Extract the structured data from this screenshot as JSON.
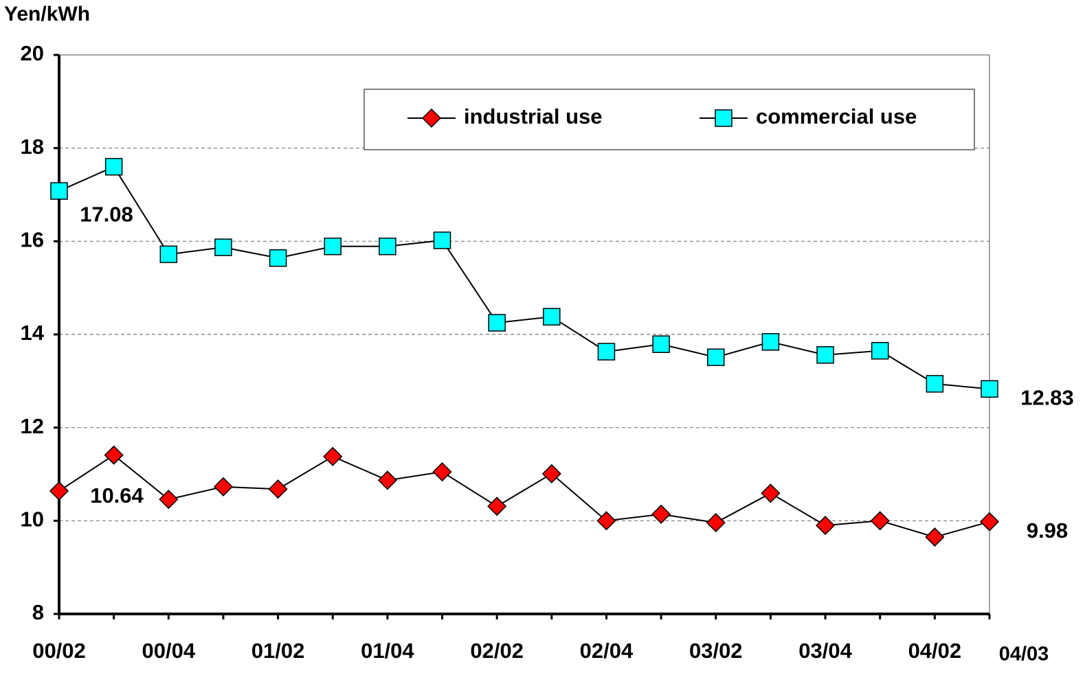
{
  "chart_data": {
    "type": "line",
    "y_axis_label": "Yen/kWh",
    "categories": [
      "00/02",
      null,
      "00/04",
      null,
      "01/02",
      null,
      "01/04",
      null,
      "02/02",
      null,
      "02/04",
      null,
      "03/02",
      null,
      "03/04",
      null,
      "04/02",
      "04/03"
    ],
    "series": [
      {
        "name": "industrial use",
        "color": "#ff0000",
        "marker": "diamond",
        "label_points": [
          0,
          17
        ],
        "values": [
          10.64,
          11.41,
          10.46,
          10.73,
          10.68,
          11.38,
          10.87,
          11.05,
          10.31,
          11.01,
          10.0,
          10.14,
          9.96,
          10.59,
          9.9,
          10.0,
          9.65,
          9.98
        ]
      },
      {
        "name": "commercial use",
        "color": "#00ffff",
        "marker": "square",
        "label_points": [
          0,
          17
        ],
        "values": [
          17.08,
          17.6,
          15.72,
          15.87,
          15.64,
          15.89,
          15.89,
          16.02,
          14.25,
          14.38,
          13.63,
          13.79,
          13.51,
          13.84,
          13.56,
          13.65,
          12.94,
          12.83
        ]
      }
    ],
    "ylim": [
      8,
      20
    ],
    "yticks": [
      8,
      10,
      12,
      14,
      16,
      18,
      20
    ],
    "grid": true,
    "legend": "top-right"
  }
}
